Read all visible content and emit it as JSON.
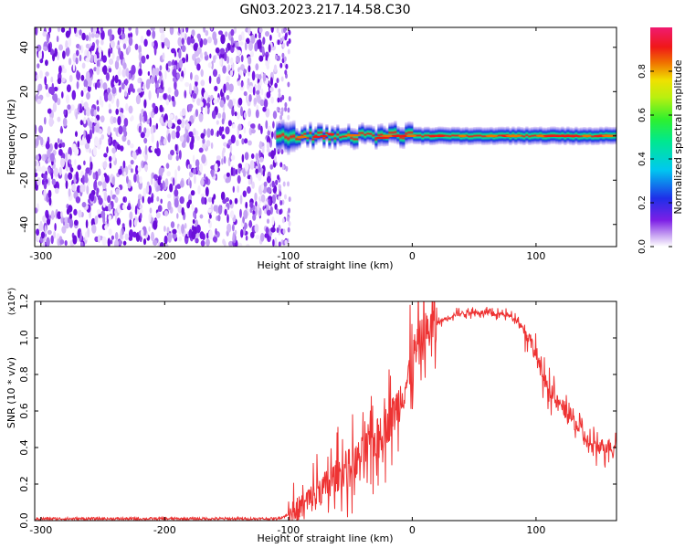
{
  "figure": {
    "title": "GN03.2023.217.14.58.C30"
  },
  "chart_data": [
    {
      "type": "heatmap",
      "title": "",
      "xlabel": "Height of straight line (km)",
      "ylabel": "Frequency (Hz)",
      "xlim": [
        -305,
        165
      ],
      "ylim": [
        -50,
        49
      ],
      "xticks": [
        -300,
        -200,
        -100,
        0,
        100
      ],
      "xtick_labels": [
        "-300",
        "-200",
        "-100",
        "0",
        "100"
      ],
      "yticks": [
        -40,
        -20,
        0,
        20,
        40
      ],
      "ytick_labels": [
        "-40",
        "-20",
        "0",
        "20",
        "40"
      ],
      "colorbar": {
        "label": "Normalized spectral amplitude",
        "range": [
          0,
          1
        ],
        "ticks": [
          0.0,
          0.2,
          0.4,
          0.6,
          0.8
        ],
        "tick_labels": [
          "0.0",
          "0.2",
          "0.4",
          "0.6",
          "0.8"
        ],
        "colormap": "rainbow (white-purple-blue-cyan-green-yellow-red-magenta)"
      },
      "regions": [
        {
          "x_range": [
            -305,
            -110
          ],
          "y_range": [
            -50,
            49
          ],
          "description_values": "uniform noise, amplitude ~0.0-0.1"
        },
        {
          "x_range": [
            -110,
            165
          ],
          "y_center": 0,
          "y_halfwidth": 4,
          "peak_amplitude": 0.9
        }
      ],
      "grid": false
    },
    {
      "type": "line",
      "title": "",
      "xlabel": "Height of straight line (km)",
      "ylabel": "SNR (10 * v/v)",
      "y_multiplier": "(x10⁴)",
      "xlim": [
        -305,
        165
      ],
      "ylim": [
        0,
        1.2
      ],
      "xticks": [
        -300,
        -200,
        -100,
        0,
        100
      ],
      "xtick_labels": [
        "-300",
        "-200",
        "-100",
        "0",
        "100"
      ],
      "yticks": [
        0.0,
        0.2,
        0.4,
        0.6,
        0.8,
        1.0,
        1.2
      ],
      "ytick_labels": [
        "0.0",
        "0.2",
        "0.4",
        "0.6",
        "0.8",
        "1.0",
        "1.2"
      ],
      "color": "#ee3333",
      "grid": false,
      "series": [
        {
          "x": [
            -305,
            -200,
            -110,
            -95,
            -85,
            -75,
            -65,
            -55,
            -45,
            -35,
            -25,
            -15,
            -5,
            5,
            15,
            25,
            35,
            45,
            55,
            65,
            75,
            85,
            95,
            105,
            115,
            125,
            135,
            145,
            155,
            165
          ],
          "y": [
            0.01,
            0.01,
            0.01,
            0.04,
            0.1,
            0.16,
            0.22,
            0.28,
            0.33,
            0.4,
            0.48,
            0.58,
            0.75,
            0.96,
            1.06,
            1.1,
            1.13,
            1.14,
            1.14,
            1.13,
            1.13,
            1.1,
            1.0,
            0.8,
            0.66,
            0.6,
            0.5,
            0.4,
            0.41,
            0.41
          ]
        }
      ]
    }
  ]
}
